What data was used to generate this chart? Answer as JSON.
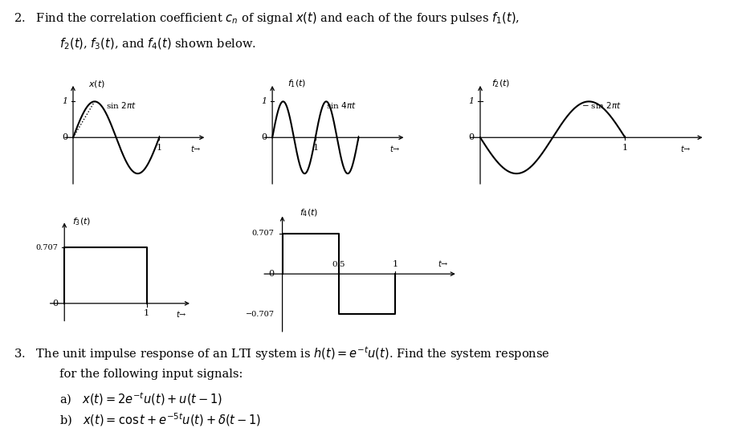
{
  "bg_color": "#ffffff",
  "axes_positions": {
    "xt": [
      0.085,
      0.565,
      0.195,
      0.24
    ],
    "f1t": [
      0.355,
      0.565,
      0.195,
      0.24
    ],
    "f2t": [
      0.635,
      0.565,
      0.32,
      0.24
    ],
    "f3t": [
      0.065,
      0.245,
      0.195,
      0.24
    ],
    "f4t": [
      0.355,
      0.22,
      0.265,
      0.28
    ]
  },
  "q2_line1": "2.   Find the correlation coefficient $c_n$ of signal $x(t)$ and each of the fours pulses $f_1(t)$,",
  "q2_line2": "     $f_2(t)$, $f_3(t)$, and $f_4(t)$ shown below.",
  "q3_line1": "3.   The unit impulse response of an LTI system is $h(t) = e^{-t}u(t)$. Find the system response",
  "q3_line2": "     for the following input signals:",
  "q3_a": "     a)   $x(t) = 2e^{-t}u(t) + u(t-1)$",
  "q3_b": "     b)   $x(t) = \\cos t + e^{-5t}u(t) + \\delta(t-1)$"
}
